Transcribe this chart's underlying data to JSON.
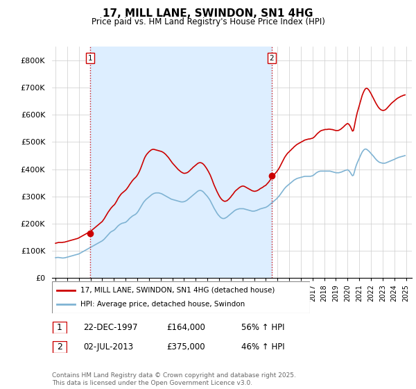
{
  "title": "17, MILL LANE, SWINDON, SN1 4HG",
  "subtitle": "Price paid vs. HM Land Registry's House Price Index (HPI)",
  "ylim": [
    0,
    850000
  ],
  "yticks": [
    0,
    100000,
    200000,
    300000,
    400000,
    500000,
    600000,
    700000,
    800000
  ],
  "ytick_labels": [
    "£0",
    "£100K",
    "£200K",
    "£300K",
    "£400K",
    "£500K",
    "£600K",
    "£700K",
    "£800K"
  ],
  "xlim_left": 1995.0,
  "xlim_right": 2025.5,
  "purchase1_date": 1997.97,
  "purchase1_price": 164000,
  "purchase2_date": 2013.5,
  "purchase2_price": 375000,
  "red_line_color": "#cc0000",
  "blue_line_color": "#7fb3d3",
  "vline_color": "#cc0000",
  "shade_color": "#ddeeff",
  "legend_label_red": "17, MILL LANE, SWINDON, SN1 4HG (detached house)",
  "legend_label_blue": "HPI: Average price, detached house, Swindon",
  "footnote": "Contains HM Land Registry data © Crown copyright and database right 2025.\nThis data is licensed under the Open Government Licence v3.0.",
  "table_row1": [
    "1",
    "22-DEC-1997",
    "£164,000",
    "56% ↑ HPI"
  ],
  "table_row2": [
    "2",
    "02-JUL-2013",
    "£375,000",
    "46% ↑ HPI"
  ],
  "hpi_years": [
    1995.0,
    1995.083,
    1995.167,
    1995.25,
    1995.333,
    1995.417,
    1995.5,
    1995.583,
    1995.667,
    1995.75,
    1995.833,
    1995.917,
    1996.0,
    1996.083,
    1996.167,
    1996.25,
    1996.333,
    1996.417,
    1996.5,
    1996.583,
    1996.667,
    1996.75,
    1996.833,
    1996.917,
    1997.0,
    1997.083,
    1997.167,
    1997.25,
    1997.333,
    1997.417,
    1997.5,
    1997.583,
    1997.667,
    1997.75,
    1997.833,
    1997.917,
    1998.0,
    1998.083,
    1998.167,
    1998.25,
    1998.333,
    1998.417,
    1998.5,
    1998.583,
    1998.667,
    1998.75,
    1998.833,
    1998.917,
    1999.0,
    1999.083,
    1999.167,
    1999.25,
    1999.333,
    1999.417,
    1999.5,
    1999.583,
    1999.667,
    1999.75,
    1999.833,
    1999.917,
    2000.0,
    2000.083,
    2000.167,
    2000.25,
    2000.333,
    2000.417,
    2000.5,
    2000.583,
    2000.667,
    2000.75,
    2000.833,
    2000.917,
    2001.0,
    2001.083,
    2001.167,
    2001.25,
    2001.333,
    2001.417,
    2001.5,
    2001.583,
    2001.667,
    2001.75,
    2001.833,
    2001.917,
    2002.0,
    2002.083,
    2002.167,
    2002.25,
    2002.333,
    2002.417,
    2002.5,
    2002.583,
    2002.667,
    2002.75,
    2002.833,
    2002.917,
    2003.0,
    2003.083,
    2003.167,
    2003.25,
    2003.333,
    2003.417,
    2003.5,
    2003.583,
    2003.667,
    2003.75,
    2003.833,
    2003.917,
    2004.0,
    2004.083,
    2004.167,
    2004.25,
    2004.333,
    2004.417,
    2004.5,
    2004.583,
    2004.667,
    2004.75,
    2004.833,
    2004.917,
    2005.0,
    2005.083,
    2005.167,
    2005.25,
    2005.333,
    2005.417,
    2005.5,
    2005.583,
    2005.667,
    2005.75,
    2005.833,
    2005.917,
    2006.0,
    2006.083,
    2006.167,
    2006.25,
    2006.333,
    2006.417,
    2006.5,
    2006.583,
    2006.667,
    2006.75,
    2006.833,
    2006.917,
    2007.0,
    2007.083,
    2007.167,
    2007.25,
    2007.333,
    2007.417,
    2007.5,
    2007.583,
    2007.667,
    2007.75,
    2007.833,
    2007.917,
    2008.0,
    2008.083,
    2008.167,
    2008.25,
    2008.333,
    2008.417,
    2008.5,
    2008.583,
    2008.667,
    2008.75,
    2008.833,
    2008.917,
    2009.0,
    2009.083,
    2009.167,
    2009.25,
    2009.333,
    2009.417,
    2009.5,
    2009.583,
    2009.667,
    2009.75,
    2009.833,
    2009.917,
    2010.0,
    2010.083,
    2010.167,
    2010.25,
    2010.333,
    2010.417,
    2010.5,
    2010.583,
    2010.667,
    2010.75,
    2010.833,
    2010.917,
    2011.0,
    2011.083,
    2011.167,
    2011.25,
    2011.333,
    2011.417,
    2011.5,
    2011.583,
    2011.667,
    2011.75,
    2011.833,
    2011.917,
    2012.0,
    2012.083,
    2012.167,
    2012.25,
    2012.333,
    2012.417,
    2012.5,
    2012.583,
    2012.667,
    2012.75,
    2012.833,
    2012.917,
    2013.0,
    2013.083,
    2013.167,
    2013.25,
    2013.333,
    2013.417,
    2013.5,
    2013.583,
    2013.667,
    2013.75,
    2013.833,
    2013.917,
    2014.0,
    2014.083,
    2014.167,
    2014.25,
    2014.333,
    2014.417,
    2014.5,
    2014.583,
    2014.667,
    2014.75,
    2014.833,
    2014.917,
    2015.0,
    2015.083,
    2015.167,
    2015.25,
    2015.333,
    2015.417,
    2015.5,
    2015.583,
    2015.667,
    2015.75,
    2015.833,
    2015.917,
    2016.0,
    2016.083,
    2016.167,
    2016.25,
    2016.333,
    2016.417,
    2016.5,
    2016.583,
    2016.667,
    2016.75,
    2016.833,
    2016.917,
    2017.0,
    2017.083,
    2017.167,
    2017.25,
    2017.333,
    2017.417,
    2017.5,
    2017.583,
    2017.667,
    2017.75,
    2017.833,
    2017.917,
    2018.0,
    2018.083,
    2018.167,
    2018.25,
    2018.333,
    2018.417,
    2018.5,
    2018.583,
    2018.667,
    2018.75,
    2018.833,
    2018.917,
    2019.0,
    2019.083,
    2019.167,
    2019.25,
    2019.333,
    2019.417,
    2019.5,
    2019.583,
    2019.667,
    2019.75,
    2019.833,
    2019.917,
    2020.0,
    2020.083,
    2020.167,
    2020.25,
    2020.333,
    2020.417,
    2020.5,
    2020.583,
    2020.667,
    2020.75,
    2020.833,
    2020.917,
    2021.0,
    2021.083,
    2021.167,
    2021.25,
    2021.333,
    2021.417,
    2021.5,
    2021.583,
    2021.667,
    2021.75,
    2021.833,
    2021.917,
    2022.0,
    2022.083,
    2022.167,
    2022.25,
    2022.333,
    2022.417,
    2022.5,
    2022.583,
    2022.667,
    2022.75,
    2022.833,
    2022.917,
    2023.0,
    2023.083,
    2023.167,
    2023.25,
    2023.333,
    2023.417,
    2023.5,
    2023.583,
    2023.667,
    2023.75,
    2023.833,
    2023.917,
    2024.0,
    2024.083,
    2024.167,
    2024.25,
    2024.333,
    2024.417,
    2024.5,
    2024.583,
    2024.667,
    2024.75,
    2024.833,
    2024.917
  ],
  "hpi_vals": [
    75000,
    75500,
    76000,
    76000,
    75500,
    75000,
    74500,
    74000,
    74000,
    74500,
    75000,
    76000,
    77000,
    78000,
    79000,
    80000,
    81000,
    82000,
    83000,
    84000,
    85000,
    86000,
    87000,
    88000,
    89000,
    91000,
    93000,
    95000,
    97000,
    99000,
    101000,
    103000,
    105000,
    107000,
    109000,
    111000,
    113000,
    115000,
    117000,
    119000,
    121000,
    123000,
    125000,
    127000,
    129000,
    131000,
    133000,
    135000,
    137000,
    140000,
    143000,
    147000,
    151000,
    155000,
    159000,
    163000,
    167000,
    170000,
    172000,
    174000,
    176000,
    179000,
    183000,
    187000,
    191000,
    194000,
    197000,
    199000,
    201000,
    202000,
    203000,
    204000,
    205000,
    208000,
    211000,
    215000,
    219000,
    222000,
    225000,
    228000,
    230000,
    232000,
    234000,
    237000,
    241000,
    246000,
    252000,
    258000,
    264000,
    270000,
    276000,
    281000,
    285000,
    289000,
    292000,
    295000,
    298000,
    301000,
    304000,
    307000,
    309000,
    311000,
    312000,
    313000,
    313000,
    313000,
    313000,
    312000,
    311000,
    310000,
    308000,
    306000,
    304000,
    302000,
    300000,
    298000,
    296000,
    294000,
    292000,
    290000,
    289000,
    288000,
    287000,
    286000,
    285000,
    284000,
    283000,
    282000,
    281000,
    280000,
    280000,
    280000,
    281000,
    282000,
    284000,
    286000,
    289000,
    292000,
    295000,
    298000,
    301000,
    304000,
    307000,
    310000,
    313000,
    316000,
    319000,
    321000,
    322000,
    322000,
    321000,
    319000,
    316000,
    312000,
    308000,
    304000,
    300000,
    295000,
    290000,
    284000,
    277000,
    270000,
    263000,
    256000,
    250000,
    244000,
    238000,
    233000,
    229000,
    225000,
    222000,
    220000,
    219000,
    219000,
    220000,
    222000,
    224000,
    227000,
    230000,
    233000,
    236000,
    239000,
    242000,
    245000,
    248000,
    250000,
    252000,
    253000,
    254000,
    255000,
    255000,
    255000,
    255000,
    255000,
    254000,
    253000,
    252000,
    251000,
    250000,
    249000,
    248000,
    247000,
    246000,
    246000,
    246000,
    247000,
    248000,
    249000,
    251000,
    252000,
    254000,
    255000,
    256000,
    257000,
    258000,
    259000,
    260000,
    262000,
    264000,
    267000,
    270000,
    273000,
    276000,
    279000,
    282000,
    285000,
    288000,
    291000,
    295000,
    299000,
    303000,
    308000,
    313000,
    318000,
    323000,
    328000,
    332000,
    336000,
    339000,
    342000,
    345000,
    348000,
    351000,
    354000,
    357000,
    360000,
    362000,
    364000,
    366000,
    367000,
    368000,
    369000,
    370000,
    371000,
    372000,
    373000,
    374000,
    374000,
    374000,
    374000,
    374000,
    374000,
    374000,
    375000,
    376000,
    378000,
    381000,
    384000,
    387000,
    389000,
    391000,
    392000,
    393000,
    393000,
    393000,
    393000,
    393000,
    393000,
    393000,
    393000,
    393000,
    393000,
    393000,
    392000,
    391000,
    390000,
    389000,
    388000,
    387000,
    387000,
    387000,
    387000,
    388000,
    389000,
    390000,
    392000,
    393000,
    395000,
    396000,
    397000,
    398000,
    396000,
    392000,
    387000,
    381000,
    376000,
    378000,
    390000,
    404000,
    415000,
    424000,
    432000,
    440000,
    448000,
    456000,
    463000,
    468000,
    472000,
    474000,
    474000,
    472000,
    469000,
    466000,
    462000,
    458000,
    454000,
    450000,
    446000,
    441000,
    437000,
    433000,
    430000,
    427000,
    425000,
    424000,
    423000,
    422000,
    422000,
    422000,
    423000,
    424000,
    426000,
    427000,
    429000,
    430000,
    432000,
    433000,
    435000,
    436000,
    438000,
    440000,
    441000,
    443000,
    444000,
    445000,
    446000,
    447000,
    448000,
    449000,
    450000
  ],
  "red_vals": [
    128000,
    129000,
    130000,
    131000,
    131000,
    131000,
    131000,
    131000,
    132000,
    132000,
    133000,
    134000,
    135000,
    136000,
    137000,
    138000,
    139000,
    140000,
    141000,
    142000,
    143000,
    144000,
    145000,
    146000,
    148000,
    150000,
    152000,
    154000,
    156000,
    158000,
    160000,
    162000,
    164000,
    166000,
    168000,
    170000,
    172000,
    175000,
    178000,
    181000,
    184000,
    187000,
    190000,
    193000,
    196000,
    199000,
    202000,
    205000,
    208000,
    213000,
    218000,
    224000,
    230000,
    236000,
    242000,
    247000,
    252000,
    257000,
    261000,
    265000,
    268000,
    272000,
    278000,
    284000,
    291000,
    297000,
    302000,
    307000,
    311000,
    314000,
    317000,
    320000,
    323000,
    327000,
    332000,
    337000,
    343000,
    348000,
    353000,
    358000,
    362000,
    366000,
    369000,
    373000,
    378000,
    384000,
    391000,
    399000,
    408000,
    418000,
    428000,
    437000,
    445000,
    451000,
    456000,
    460000,
    464000,
    467000,
    470000,
    472000,
    473000,
    473000,
    472000,
    471000,
    470000,
    469000,
    468000,
    467000,
    466000,
    465000,
    463000,
    461000,
    458000,
    455000,
    451000,
    447000,
    443000,
    438000,
    433000,
    428000,
    423000,
    419000,
    415000,
    411000,
    407000,
    403000,
    399000,
    396000,
    393000,
    390000,
    388000,
    386000,
    385000,
    385000,
    386000,
    387000,
    389000,
    392000,
    395000,
    399000,
    402000,
    406000,
    409000,
    412000,
    415000,
    418000,
    421000,
    423000,
    424000,
    424000,
    423000,
    421000,
    418000,
    414000,
    409000,
    404000,
    398000,
    392000,
    385000,
    378000,
    369000,
    360000,
    350000,
    341000,
    333000,
    325000,
    317000,
    310000,
    303000,
    297000,
    292000,
    288000,
    285000,
    283000,
    282000,
    283000,
    284000,
    287000,
    290000,
    294000,
    298000,
    303000,
    307000,
    312000,
    317000,
    321000,
    324000,
    327000,
    330000,
    333000,
    335000,
    337000,
    338000,
    338000,
    337000,
    335000,
    333000,
    331000,
    329000,
    327000,
    325000,
    323000,
    321000,
    320000,
    319000,
    319000,
    320000,
    321000,
    323000,
    325000,
    328000,
    330000,
    332000,
    334000,
    337000,
    339000,
    341000,
    345000,
    349000,
    353000,
    358000,
    363000,
    368000,
    373000,
    378000,
    382000,
    386000,
    390000,
    395000,
    400000,
    406000,
    413000,
    420000,
    427000,
    434000,
    441000,
    447000,
    452000,
    457000,
    461000,
    464000,
    468000,
    471000,
    475000,
    478000,
    482000,
    485000,
    488000,
    491000,
    493000,
    495000,
    497000,
    499000,
    501000,
    503000,
    505000,
    507000,
    508000,
    509000,
    510000,
    511000,
    511000,
    512000,
    513000,
    514000,
    516000,
    519000,
    523000,
    527000,
    531000,
    534000,
    537000,
    540000,
    542000,
    543000,
    544000,
    545000,
    546000,
    546000,
    546000,
    547000,
    547000,
    547000,
    546000,
    546000,
    545000,
    544000,
    543000,
    542000,
    542000,
    542000,
    543000,
    545000,
    547000,
    550000,
    553000,
    556000,
    560000,
    563000,
    566000,
    568000,
    566000,
    562000,
    556000,
    548000,
    540000,
    542000,
    558000,
    577000,
    594000,
    609000,
    621000,
    634000,
    646000,
    659000,
    671000,
    680000,
    688000,
    694000,
    697000,
    697000,
    694000,
    690000,
    684000,
    678000,
    671000,
    664000,
    657000,
    650000,
    643000,
    637000,
    631000,
    626000,
    622000,
    619000,
    617000,
    616000,
    616000,
    617000,
    619000,
    622000,
    626000,
    630000,
    634000,
    638000,
    642000,
    645000,
    648000,
    651000,
    654000,
    657000,
    660000,
    662000,
    664000,
    666000,
    668000,
    669000,
    671000,
    672000,
    673000
  ]
}
